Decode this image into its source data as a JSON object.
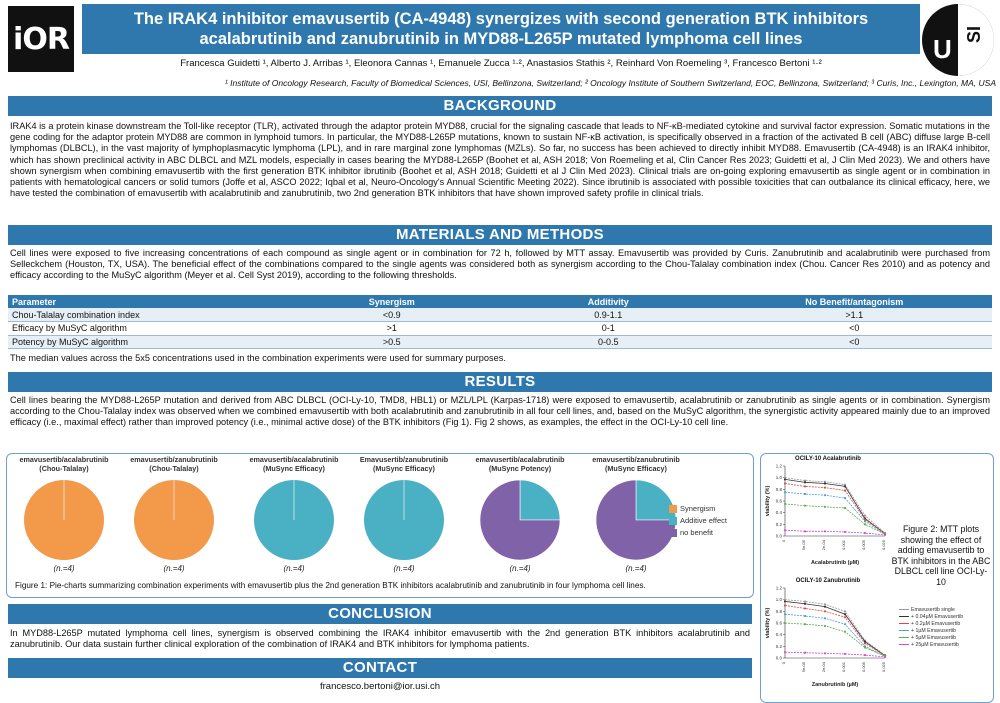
{
  "header": {
    "logo_left": "iOR",
    "title_line1": "The IRAK4 inhibitor emavusertib (CA-4948) synergizes with second generation BTK inhibitors",
    "title_line2": "acalabrutinib and zanubrutinib in MYD88-L265P mutated lymphoma cell lines",
    "authors": "Francesca Guidetti ¹, Alberto J. Arribas ¹, Eleonora Cannas ¹, Emanuele Zucca ¹·², Anastasios Stathis ², Reinhard Von Roemeling ³, Francesco Bertoni ¹·²",
    "affiliations": "¹ Institute of Oncology Research, Faculty of Biomedical Sciences, USI, Bellinzona, Switzerland; ² Oncology Institute of Southern Switzerland, EOC, Bellinzona, Switzerland; ³ Curis, Inc., Lexington, MA, USA",
    "logo_right_u": "U",
    "logo_right_si": "SI"
  },
  "background": {
    "heading": "BACKGROUND",
    "text": "IRAK4 is a protein kinase downstream the Toll-like receptor (TLR), activated through the adaptor protein MYD88, crucial for the signaling cascade that leads to NF-κB-mediated cytokine and survival factor expression. Somatic mutations in the gene coding for the adaptor protein MYD88 are common in lymphoid tumors. In particular, the MYD88-L265P mutations, known to sustain NF-κB activation, is specifically observed in a fraction of the activated B cell (ABC) diffuse large B-cell lymphomas (DLBCL), in the vast majority of lymphoplasmacytic lymphoma (LPL), and in rare marginal zone lymphomas (MZLs). So far, no success has been achieved to directly inhibit MYD88. Emavusertib (CA-4948) is an IRAK4 inhibitor, which has shown preclinical activity in ABC DLBCL and MZL models, especially in cases bearing the MYD88-L265P (Boohet et al, ASH 2018; Von Roemeling et al, Clin Cancer Res 2023; Guidetti et al, J Clin Med 2023). We and others have shown synergism when combining emavusertib with the first generation BTK inhibitor ibrutinib (Boohet et al, ASH 2018; Guidetti et al J Clin Med 2023). Clinical trials are on-going exploring emavusertib as single agent or in combination in patients with hematological cancers or solid tumors (Joffe et al, ASCO 2022; Iqbal et al, Neuro-Oncology's Annual Scientific Meeting 2022). Since ibrutinib is associated with possible toxicities that can outbalance its clinical efficacy, here, we have tested the combination of emavusertib with acalabrutinib and zanubrutinib, two 2nd generation BTK inhibitors that have shown improved safety profile in clinical trials."
  },
  "methods": {
    "heading": "MATERIALS AND METHODS",
    "text": "Cell lines were exposed to five increasing concentrations of each compound as single agent or in combination for 72 h, followed by MTT assay. Emavusertib was provided by Curis. Zanubrutinib and acalabrutinib were purchased from Selleckchem (Houston, TX, USA). The beneficial effect of the combinations compared to the single agents was considered both as synergism according to the Chou-Talalay combination index (Chou. Cancer Res 2010) and as potency and efficacy according to the MuSyC algorithm (Meyer et al. Cell Syst 2019), according to the following thresholds.",
    "table": {
      "headers": [
        "Parameter",
        "Synergism",
        "Additivity",
        "No Benefit/antagonism"
      ],
      "rows": [
        [
          "Chou-Talalay combination index",
          "<0.9",
          "0.9-1.1",
          ">1.1"
        ],
        [
          "Efficacy by MuSyC algorithm",
          ">1",
          "0-1",
          "<0"
        ],
        [
          "Potency by MuSyC algorithm",
          ">0.5",
          "0-0.5",
          "<0"
        ]
      ]
    },
    "note": "The median values across the 5x5 concentrations used in the combination experiments were used for summary purposes."
  },
  "results": {
    "heading": "RESULTS",
    "text": "Cell lines bearing the MYD88-L265P mutation and derived from ABC DLBCL (OCI-Ly-10, TMD8, HBL1) or MZL/LPL (Karpas-1718) were exposed to emavusertib, acalabrutinib or zanubrutinib as single agents or in combination. Synergism according to the Chou-Talalay index was observed when we combined emavusertib with both acalabrutinib and zanubrutinib in all four cell lines, and, based on the MuSyC algorithm, the synergistic activity appeared mainly due to an improved efficacy (i.e., maximal effect) rather than improved potency (i.e., minimal active dose) of the BTK inhibitors (Fig 1). Fig 2 shows, as examples, the effect in the OCI-Ly-10 cell line."
  },
  "pies": {
    "colors": {
      "synergism": "#f29a4a",
      "additive": "#4ab0c4",
      "nobenefit": "#8062a8"
    },
    "legend": [
      "Synergism",
      "Additive effect",
      "no benefit"
    ],
    "items": [
      {
        "title1": "emavusertib/acalabrutinib",
        "title2": "(Chou-Talalay)",
        "n": "(n.=4)",
        "synergism": 4,
        "additive": 0,
        "nobenefit": 0
      },
      {
        "title1": "emavusertib/zanubrutinib",
        "title2": "(Chou-Talalay)",
        "n": "(n.=4)",
        "synergism": 4,
        "additive": 0,
        "nobenefit": 0
      },
      {
        "title1": "emavusertib/acalabrutinib",
        "title2": "(MuSync Efficacy)",
        "n": "(n.=4)",
        "synergism": 0,
        "additive": 4,
        "nobenefit": 0
      },
      {
        "title1": "Emavusertib/zanubrutinib",
        "title2": "(MuSync Efficacy)",
        "n": "(n.=4)",
        "synergism": 0,
        "additive": 4,
        "nobenefit": 0
      },
      {
        "title1": "emavusertib/acalabrutinib",
        "title2": "(MuSync Potency)",
        "n": "(n.=4)",
        "synergism": 0,
        "additive": 1,
        "nobenefit": 3
      },
      {
        "title1": "emavusertib/zanubrutinib",
        "title2": "(MuSync Efficacy)",
        "n": "(n.=4)",
        "synergism": 0,
        "additive": 1,
        "nobenefit": 3
      }
    ],
    "caption": "Figure 1: Pie-charts summarizing combination experiments with emavusertib plus the 2nd generation BTK inhibitors acalabrutinib and zanubrutinib in four lymphoma cell lines."
  },
  "chart_data": [
    {
      "type": "pie",
      "title": "emavusertib/acalabrutinib (Chou-Talalay)",
      "categories": [
        "Synergism",
        "Additive effect",
        "no benefit"
      ],
      "values": [
        4,
        0,
        0
      ]
    },
    {
      "type": "pie",
      "title": "emavusertib/zanubrutinib (Chou-Talalay)",
      "categories": [
        "Synergism",
        "Additive effect",
        "no benefit"
      ],
      "values": [
        4,
        0,
        0
      ]
    },
    {
      "type": "pie",
      "title": "emavusertib/acalabrutinib (MuSync Efficacy)",
      "categories": [
        "Synergism",
        "Additive effect",
        "no benefit"
      ],
      "values": [
        0,
        4,
        0
      ]
    },
    {
      "type": "pie",
      "title": "Emavusertib/zanubrutinib (MuSync Efficacy)",
      "categories": [
        "Synergism",
        "Additive effect",
        "no benefit"
      ],
      "values": [
        0,
        4,
        0
      ]
    },
    {
      "type": "pie",
      "title": "emavusertib/acalabrutinib (MuSync Potency)",
      "categories": [
        "Synergism",
        "Additive effect",
        "no benefit"
      ],
      "values": [
        0,
        1,
        3
      ]
    },
    {
      "type": "pie",
      "title": "emavusertib/zanubrutinib (MuSync Efficacy)",
      "categories": [
        "Synergism",
        "Additive effect",
        "no benefit"
      ],
      "values": [
        0,
        1,
        3
      ]
    },
    {
      "type": "line",
      "title": "OCILY-10 Acalabrutinib",
      "xlabel": "Acalabrutinib (µM)",
      "ylabel": "viability (%)",
      "x": [
        "0",
        "5e-05",
        "2e-04",
        "0.001",
        "0.005",
        "0.025"
      ],
      "ylim": [
        0,
        1.2
      ],
      "series": [
        {
          "name": "Emavusertib single",
          "values": [
            1.0,
            0.95,
            0.93,
            0.88,
            0.35,
            0.05
          ]
        },
        {
          "name": "+ 0.04µM Emavusertib",
          "values": [
            0.97,
            0.92,
            0.9,
            0.85,
            0.3,
            0.04
          ]
        },
        {
          "name": "+ 0.2µM Emavusertib",
          "values": [
            0.9,
            0.85,
            0.83,
            0.78,
            0.28,
            0.04
          ]
        },
        {
          "name": "+ 1µM Emavusertib",
          "values": [
            0.75,
            0.72,
            0.7,
            0.65,
            0.25,
            0.03
          ]
        },
        {
          "name": "+ 5µM Emavusertib",
          "values": [
            0.55,
            0.52,
            0.5,
            0.48,
            0.2,
            0.03
          ]
        },
        {
          "name": "+ 25µM Emavusertib",
          "values": [
            0.1,
            0.08,
            0.08,
            0.07,
            0.05,
            0.02
          ]
        }
      ]
    },
    {
      "type": "line",
      "title": "OCILY-10 Zanubrutinib",
      "xlabel": "Zanubrutinib (µM)",
      "ylabel": "viability (%)",
      "x": [
        "0",
        "5e-05",
        "2e-04",
        "0.001",
        "0.005",
        "0.025"
      ],
      "ylim": [
        0,
        1.2
      ],
      "series": [
        {
          "name": "Emavusertib single",
          "values": [
            1.0,
            0.97,
            0.92,
            0.8,
            0.3,
            0.05
          ]
        },
        {
          "name": "+ 0.04µM Emavusertib",
          "values": [
            0.97,
            0.93,
            0.88,
            0.75,
            0.28,
            0.04
          ]
        },
        {
          "name": "+ 0.2µM Emavusertib",
          "values": [
            0.9,
            0.85,
            0.8,
            0.7,
            0.25,
            0.04
          ]
        },
        {
          "name": "+ 1µM Emavusertib",
          "values": [
            0.75,
            0.72,
            0.68,
            0.58,
            0.2,
            0.03
          ]
        },
        {
          "name": "+ 5µM Emavusertib",
          "values": [
            0.6,
            0.58,
            0.55,
            0.45,
            0.18,
            0.03
          ]
        },
        {
          "name": "+ 25µM Emavusertib",
          "values": [
            0.1,
            0.09,
            0.08,
            0.07,
            0.05,
            0.02
          ]
        }
      ]
    }
  ],
  "mtt": {
    "series_colors": [
      "#999999",
      "#333333",
      "#d94a4a",
      "#4aa0d9",
      "#5fae4a",
      "#d94ad0"
    ],
    "caption": "Figure 2: MTT plots showing the effect of adding emavusertib to BTK inhibitors in the ABC DLBCL cell line OCI-Ly-10"
  },
  "conclusion": {
    "heading": "CONCLUSION",
    "text": "In MYD88-L265P mutated lymphoma cell lines, synergism is observed combining the IRAK4 inhibitor emavusertib with the 2nd generation BTK inhibitors acalabrutinib and zanubrutinib. Our data sustain further clinical exploration of the combination of IRAK4 and BTK inhibitors for lymphoma patients."
  },
  "contact": {
    "heading": "CONTACT",
    "email": "francesco.bertoni@ior.usi.ch"
  }
}
